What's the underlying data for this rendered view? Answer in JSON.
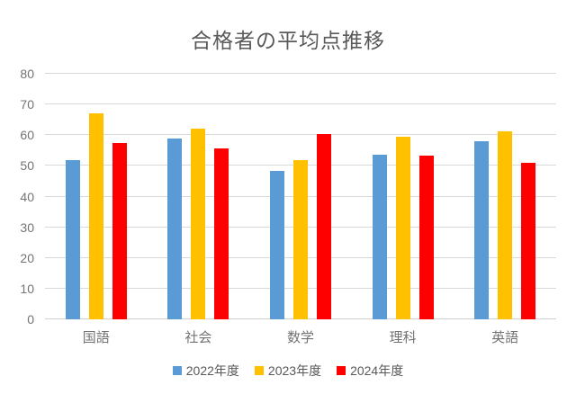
{
  "chart_data": {
    "type": "bar",
    "title": "合格者の平均点推移",
    "categories": [
      "国語",
      "社会",
      "数学",
      "理科",
      "英語"
    ],
    "series": [
      {
        "name": "2022年度",
        "color": "#5B9BD5",
        "values": [
          51.8,
          59.0,
          48.3,
          53.5,
          58.0
        ]
      },
      {
        "name": "2023年度",
        "color": "#FFC000",
        "values": [
          67.0,
          62.0,
          51.8,
          59.6,
          61.2
        ]
      },
      {
        "name": "2024年度",
        "color": "#FF0000",
        "values": [
          57.5,
          55.7,
          60.5,
          53.3,
          51.0
        ]
      }
    ],
    "xlabel": "",
    "ylabel": "",
    "ylim": [
      0,
      80
    ],
    "yticks": [
      0,
      10,
      20,
      30,
      40,
      50,
      60,
      70,
      80
    ],
    "grid": true,
    "legend_position": "bottom"
  },
  "colors": {
    "title_text": "#595959",
    "axis_text": "#737373",
    "legend_text": "#595959",
    "gridline": "#D9D9D9",
    "background": "#FFFFFF"
  }
}
